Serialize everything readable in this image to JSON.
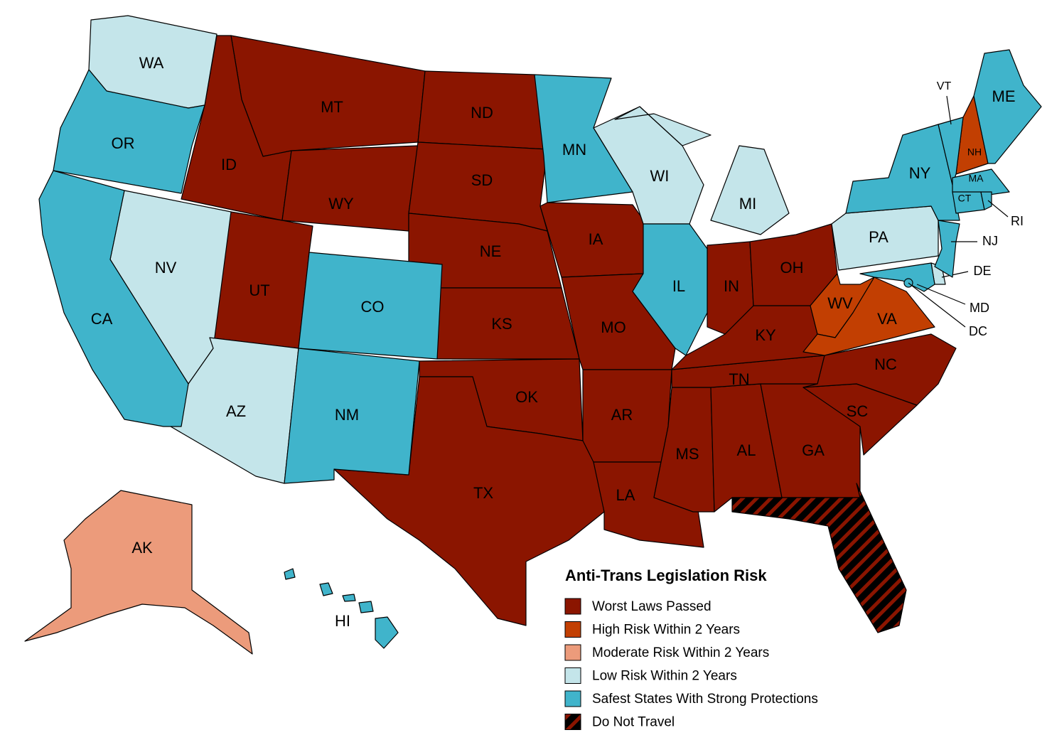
{
  "legend": {
    "title": "Anti-Trans Legislation Risk",
    "items": [
      {
        "label": "Worst Laws Passed",
        "color": "#8b1500",
        "states": [
          "MT",
          "ID",
          "WY",
          "UT",
          "ND",
          "SD",
          "NE",
          "KS",
          "OK",
          "TX",
          "IA",
          "MO",
          "AR",
          "LA",
          "MS",
          "AL",
          "GA",
          "SC",
          "NC",
          "TN",
          "KY",
          "IN",
          "OH"
        ]
      },
      {
        "label": "High Risk Within 2 Years",
        "color": "#c23f02",
        "states": [
          "NH",
          "WV",
          "VA"
        ]
      },
      {
        "label": "Moderate Risk Within 2 Years",
        "color": "#ec9b7b",
        "states": [
          "AK"
        ]
      },
      {
        "label": "Low Risk Within 2 Years",
        "color": "#c4e5ea",
        "states": [
          "WA",
          "NV",
          "AZ",
          "WI",
          "MI",
          "PA",
          "DE"
        ]
      },
      {
        "label": "Safest States With Strong Protections",
        "color": "#40b4cb",
        "states": [
          "OR",
          "CA",
          "CO",
          "NM",
          "MN",
          "IL",
          "NY",
          "VT",
          "ME",
          "MA",
          "CT",
          "RI",
          "NJ",
          "MD",
          "DC",
          "HI"
        ]
      },
      {
        "label": "Do Not Travel",
        "color": "#000000",
        "hatch": "#8b1500"
      }
    ]
  }
}
